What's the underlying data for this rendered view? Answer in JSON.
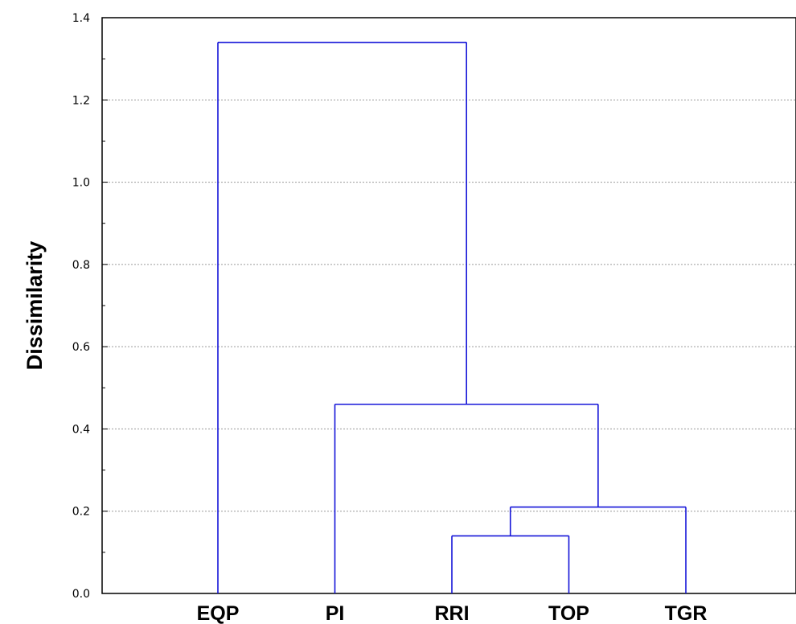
{
  "chart_data": {
    "type": "dendrogram",
    "title": "",
    "xlabel": "",
    "ylabel": "Dissimilarity",
    "ylim": [
      0,
      1.4
    ],
    "yticks": [
      "0.0",
      "0.2",
      "0.4",
      "0.6",
      "0.8",
      "1.0",
      "1.2",
      "1.4"
    ],
    "leaves": [
      "EQP",
      "PI",
      "RRI",
      "TOP",
      "TGR"
    ],
    "merges": [
      {
        "members": [
          "RRI",
          "TOP"
        ],
        "height": 0.14
      },
      {
        "members": [
          "RRI",
          "TOP",
          "TGR"
        ],
        "height": 0.21
      },
      {
        "members": [
          "PI",
          "RRI",
          "TOP",
          "TGR"
        ],
        "height": 0.46
      },
      {
        "members": [
          "EQP",
          "PI",
          "RRI",
          "TOP",
          "TGR"
        ],
        "height": 1.34
      }
    ],
    "grid": true,
    "link_color": "#1515d8",
    "grid_color": "#9a9a9a"
  }
}
